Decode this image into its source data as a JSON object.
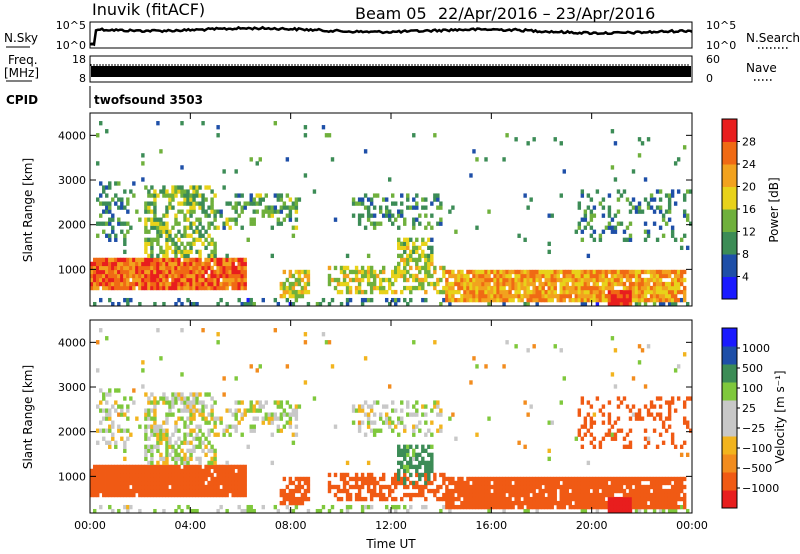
{
  "header": {
    "station": "Inuvik (fitACF)",
    "beam": "Beam 05",
    "date_range": "22/Apr/2016 – 23/Apr/2016"
  },
  "top_panels": {
    "nsky_label": "N.Sky",
    "nsky_ticks": [
      "10^5",
      "10^0"
    ],
    "nsearch_label": "N.Search",
    "nsearch_ticks": [
      "10^5",
      "10^0"
    ],
    "freq_label_line1": "Freq.",
    "freq_label_line2": "[MHz]",
    "freq_ticks": [
      "18",
      "8"
    ],
    "nave_label": "Nave",
    "nave_ticks": [
      "60",
      "0"
    ],
    "cpid_label": "CPID",
    "cpid_value": "twofsound 3503"
  },
  "colors": {
    "power_scale": [
      "#1a1aff",
      "#1e4fa8",
      "#3c8c56",
      "#6fb03c",
      "#e8d21a",
      "#f2a21e",
      "#f06a14",
      "#e81e1e"
    ],
    "velocity_scale": [
      "#e81e1e",
      "#f05a14",
      "#f28c1e",
      "#f2b41e",
      "#c8c8c8",
      "#c8c8c8",
      "#7fc83c",
      "#3c8c56",
      "#1e4fa8",
      "#1a1aff"
    ]
  },
  "chart_data": [
    {
      "type": "heatmap",
      "name": "power",
      "ylabel": "Slant Range [km]",
      "yticks": [
        "1000",
        "2000",
        "3000",
        "4000"
      ],
      "xticks": [
        "00:00",
        "04:00",
        "08:00",
        "12:00",
        "16:00",
        "20:00",
        "00:00"
      ],
      "xlim_hours": [
        0,
        24
      ],
      "ylim_km": [
        180,
        4500
      ],
      "colorbar_label": "Power [dB]",
      "colorbar_ticks": [
        "4",
        "8",
        "12",
        "16",
        "20",
        "24",
        "28"
      ],
      "colorbar_range": [
        0,
        31
      ]
    },
    {
      "type": "heatmap",
      "name": "velocity",
      "ylabel": "Slant Range [km]",
      "yticks": [
        "1000",
        "2000",
        "3000",
        "4000"
      ],
      "xticks": [
        "00:00",
        "04:00",
        "08:00",
        "12:00",
        "16:00",
        "20:00",
        "00:00"
      ],
      "xlabel": "Time UT",
      "xlim_hours": [
        0,
        24
      ],
      "ylim_km": [
        180,
        4500
      ],
      "colorbar_label": "Velocity [m s⁻¹]",
      "colorbar_ticks": [
        "1000",
        "500",
        "100",
        "25",
        "−25",
        "−100",
        "−500",
        "−1000"
      ]
    }
  ]
}
